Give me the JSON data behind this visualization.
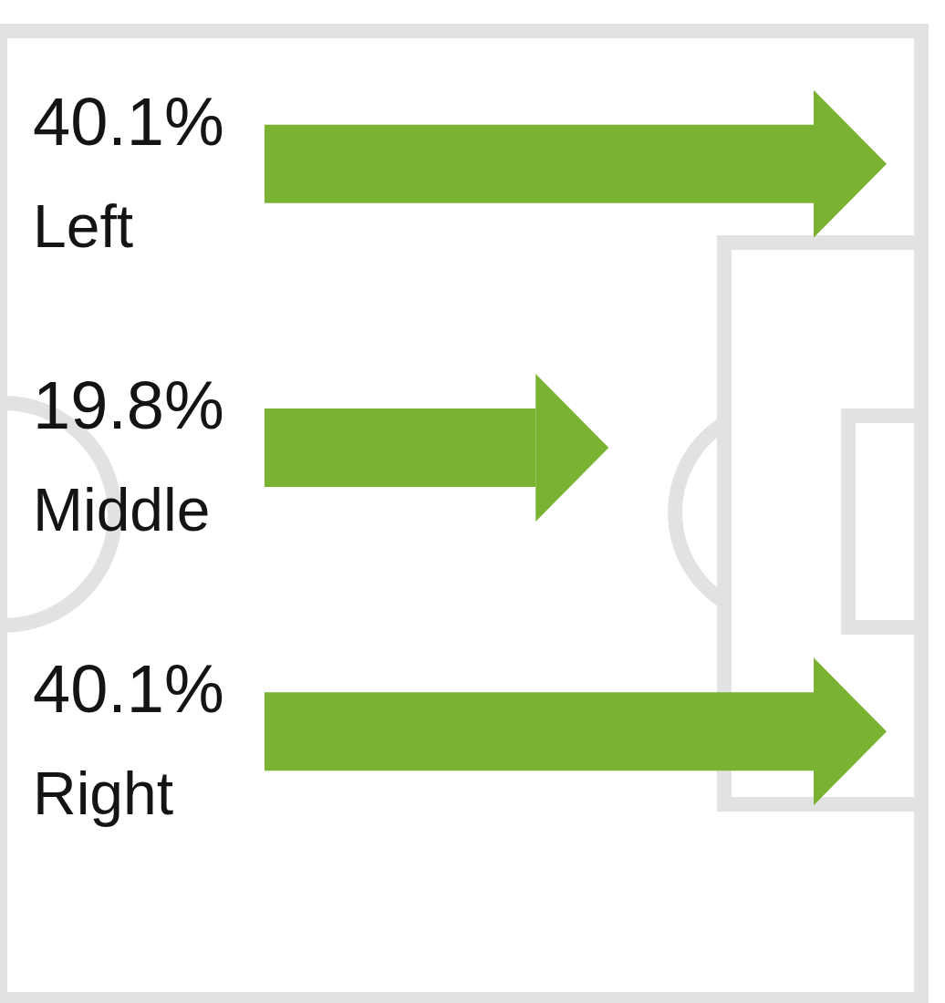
{
  "chart_data": {
    "type": "bar",
    "orientation": "horizontal",
    "categories": [
      "Left",
      "Middle",
      "Right"
    ],
    "values": [
      40.1,
      19.8,
      40.1
    ],
    "value_labels": [
      "40.1%",
      "19.8%",
      "40.1%"
    ],
    "color": "#7ab232",
    "tick_labels": "y"
  }
}
